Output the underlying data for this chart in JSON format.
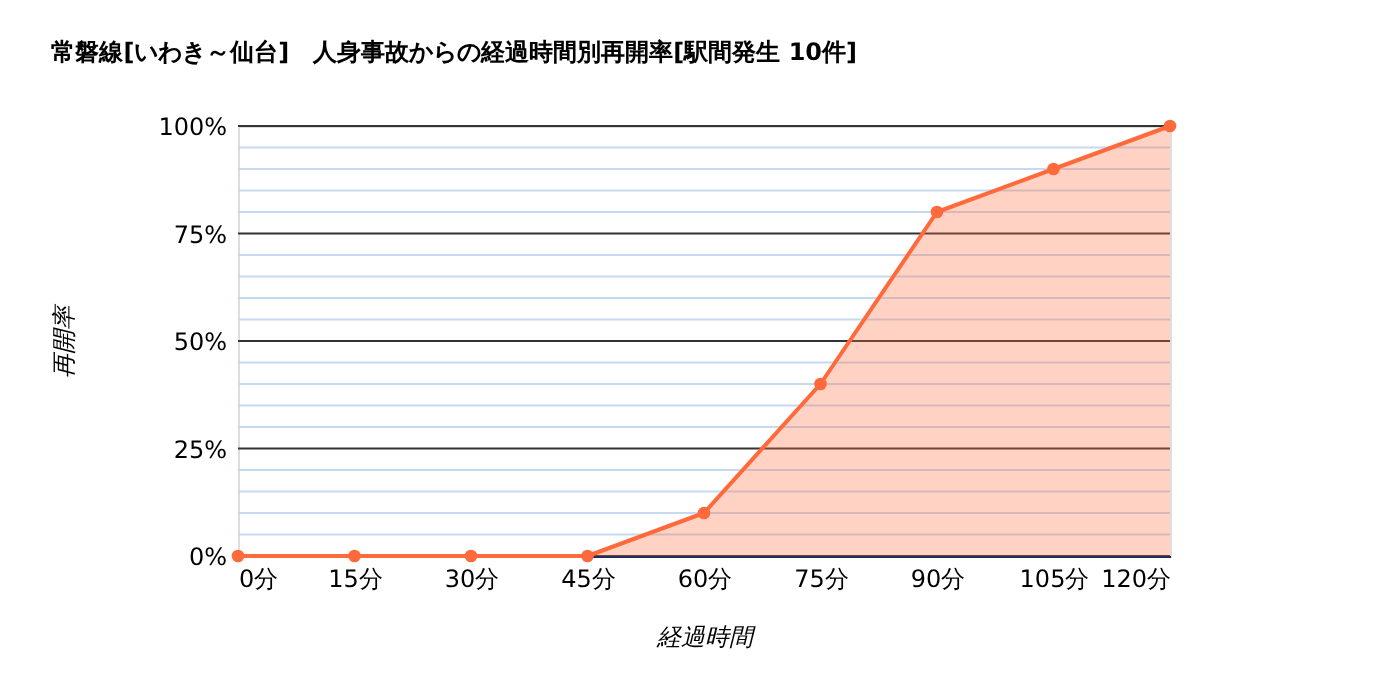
{
  "chart_data": {
    "type": "area",
    "title": "常磐線[いわき～仙台]　人身事故からの経過時間別再開率[駅間発生 10件]",
    "xlabel": "経過時間",
    "ylabel": "再開率",
    "x": [
      0,
      15,
      30,
      45,
      60,
      75,
      90,
      105,
      120
    ],
    "series": [
      {
        "color": "#ff6a3d",
        "values": [
          0,
          0,
          0,
          0,
          10,
          40,
          80,
          90,
          100
        ]
      }
    ],
    "xlim": [
      0,
      120
    ],
    "xticks": [
      {
        "value": 0,
        "label": "0分"
      },
      {
        "value": 15,
        "label": "15分"
      },
      {
        "value": 30,
        "label": "30分"
      },
      {
        "value": 45,
        "label": "45分"
      },
      {
        "value": 60,
        "label": "60分"
      },
      {
        "value": 75,
        "label": "75分"
      },
      {
        "value": 90,
        "label": "90分"
      },
      {
        "value": 105,
        "label": "105分"
      },
      {
        "value": 120,
        "label": "120分"
      }
    ],
    "ylim": [
      0,
      100
    ],
    "yticks": [
      {
        "value": 0,
        "label": "0%"
      },
      {
        "value": 5,
        "label": null
      },
      {
        "value": 10,
        "label": null
      },
      {
        "value": 15,
        "label": null
      },
      {
        "value": 20,
        "label": null
      },
      {
        "value": 25,
        "label": "25%"
      },
      {
        "value": 30,
        "label": null
      },
      {
        "value": 35,
        "label": null
      },
      {
        "value": 40,
        "label": null
      },
      {
        "value": 45,
        "label": null
      },
      {
        "value": 50,
        "label": "50%"
      },
      {
        "value": 55,
        "label": null
      },
      {
        "value": 60,
        "label": null
      },
      {
        "value": 65,
        "label": null
      },
      {
        "value": 70,
        "label": null
      },
      {
        "value": 75,
        "label": "75%"
      },
      {
        "value": 80,
        "label": null
      },
      {
        "value": 85,
        "label": null
      },
      {
        "value": 90,
        "label": null
      },
      {
        "value": 95,
        "label": null
      },
      {
        "value": 100,
        "label": "100%"
      }
    ],
    "grid": "y",
    "marker": "circle",
    "line_style": "solid"
  }
}
